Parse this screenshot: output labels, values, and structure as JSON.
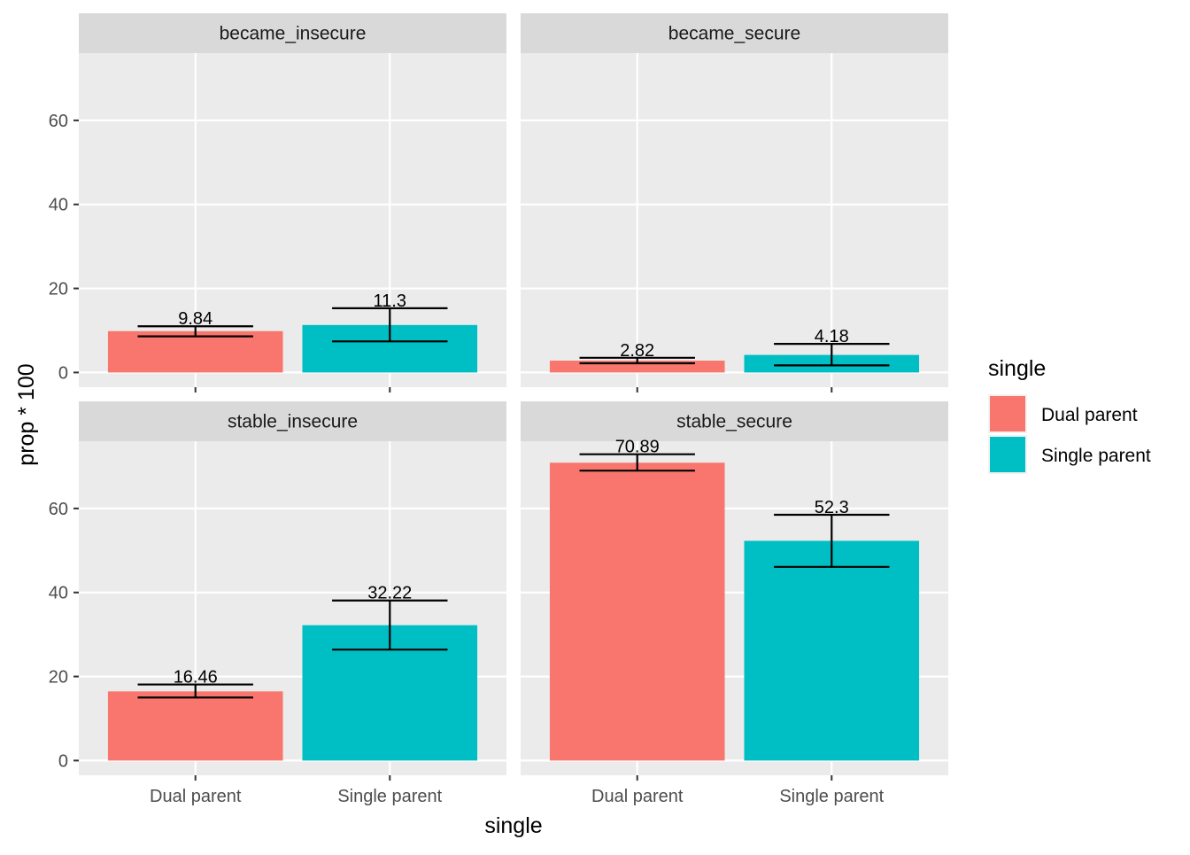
{
  "chart_data": {
    "type": "bar",
    "xlabel": "single",
    "ylabel": "prop * 100",
    "ylim": [
      -3.5,
      76
    ],
    "yticks": [
      0,
      20,
      40,
      60
    ],
    "grid": true,
    "categories": [
      "Dual parent",
      "Single parent"
    ],
    "colors": {
      "Dual parent": "#F8766D",
      "Single parent": "#00BFC4"
    },
    "legend": {
      "title": "single",
      "position": "right",
      "entries": [
        "Dual parent",
        "Single parent"
      ]
    },
    "facets": [
      {
        "name": "became_insecure",
        "values": [
          9.84,
          11.3
        ],
        "labels": [
          "9.84",
          "11.3"
        ],
        "error": [
          [
            8.6,
            11.0
          ],
          [
            7.4,
            15.3
          ]
        ]
      },
      {
        "name": "became_secure",
        "values": [
          2.82,
          4.18
        ],
        "labels": [
          "2.82",
          "4.18"
        ],
        "error": [
          [
            2.2,
            3.5
          ],
          [
            1.7,
            6.8
          ]
        ]
      },
      {
        "name": "stable_insecure",
        "values": [
          16.46,
          32.22
        ],
        "labels": [
          "16.46",
          "32.22"
        ],
        "error": [
          [
            15.0,
            18.1
          ],
          [
            26.4,
            38.1
          ]
        ]
      },
      {
        "name": "stable_secure",
        "values": [
          70.89,
          52.3
        ],
        "labels": [
          "70.89",
          "52.3"
        ],
        "error": [
          [
            69.0,
            72.9
          ],
          [
            46.1,
            58.5
          ]
        ]
      }
    ]
  }
}
